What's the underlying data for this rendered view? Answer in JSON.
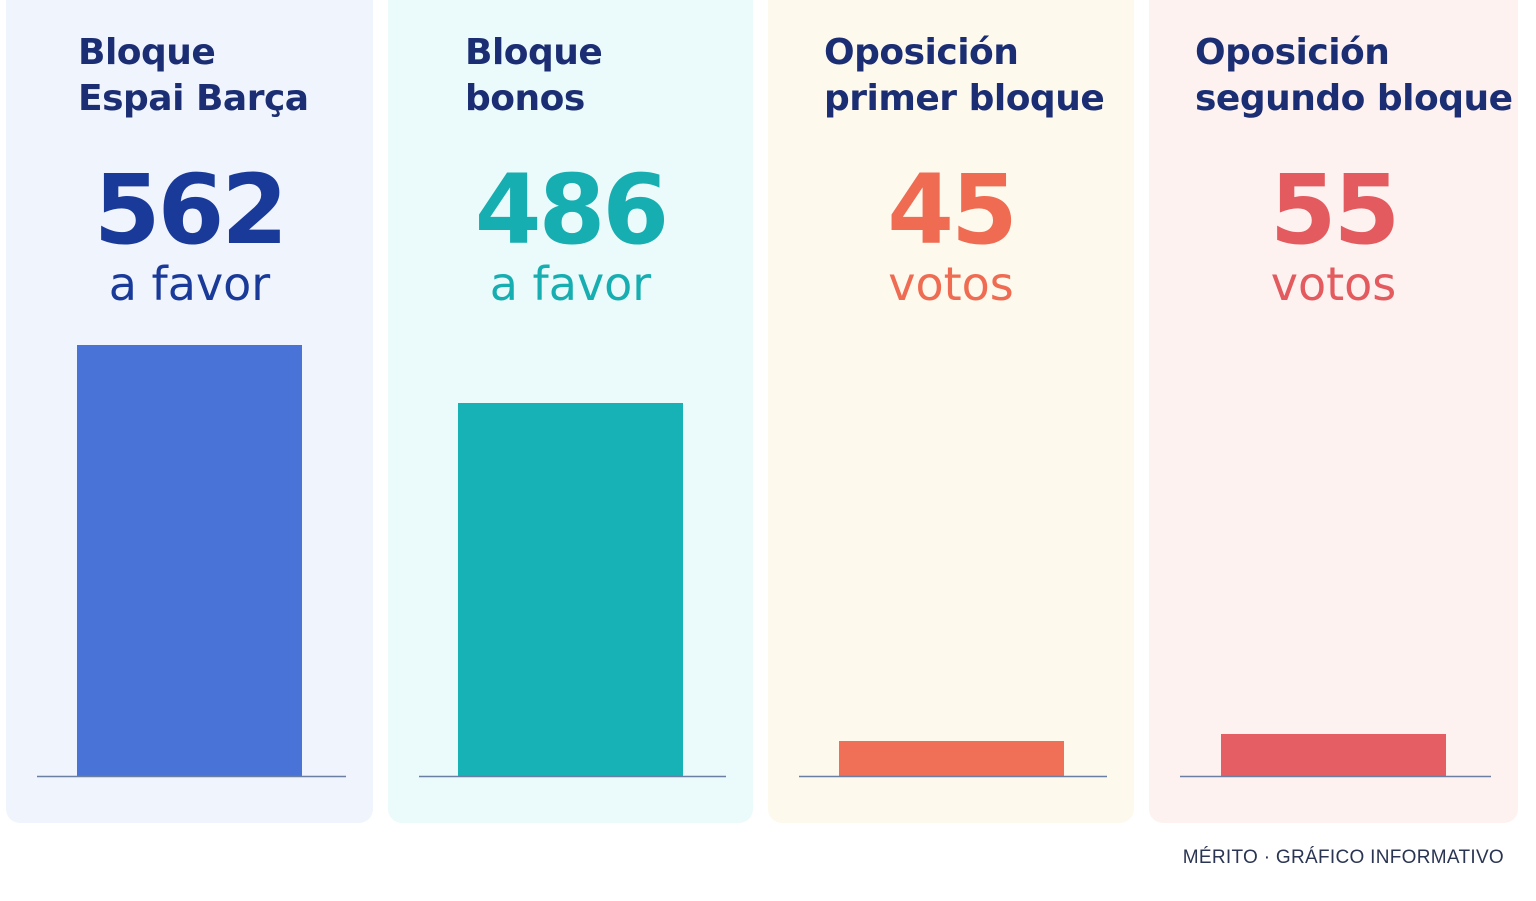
{
  "chart_data": {
    "type": "bar",
    "categories": [
      "Bloque Espai Barça",
      "Bloque bonos",
      "Oposición primer bloque",
      "Oposición segundo bloque"
    ],
    "values": [
      562,
      486,
      45,
      55
    ],
    "ylim": [
      0,
      562
    ],
    "grid": false,
    "legend": "none",
    "panels": [
      {
        "title_line1": "Bloque",
        "title_line2": "Espai Barça",
        "value_label": "562",
        "unit_label": "a favor",
        "value": 562,
        "bar_color": "#4a73d8",
        "number_color": "#1a3a9a",
        "unit_color": "#1a3a9a",
        "panel_bg": "#eff4fd"
      },
      {
        "title_line1": "Bloque",
        "title_line2": "bonos",
        "value_label": "486",
        "unit_label": "a favor",
        "value": 486,
        "bar_color": "#17b2b6",
        "number_color": "#16aeb1",
        "unit_color": "#16aeb1",
        "panel_bg": "#ebfafa"
      },
      {
        "title_line1": "Oposición",
        "title_line2": "primer bloque",
        "value_label": "45",
        "unit_label": "votos",
        "value": 45,
        "bar_color": "#f06f57",
        "number_color": "#ef6b51",
        "unit_color": "#ef6b51",
        "panel_bg": "#fdf9ec"
      },
      {
        "title_line1": "Oposición",
        "title_line2": "segundo bloque",
        "value_label": "55",
        "unit_label": "votos",
        "value": 55,
        "bar_color": "#e55e63",
        "number_color": "#e35a5f",
        "unit_color": "#e35a5f",
        "panel_bg": "#fdf2ef"
      }
    ]
  },
  "footer": {
    "credit": "MÉRITO · GRÁFICO INFORMATIVO"
  },
  "colors": {
    "title": "#1b2e73",
    "baseline": "#6b7fa3",
    "footer_text": "#2a3553"
  }
}
